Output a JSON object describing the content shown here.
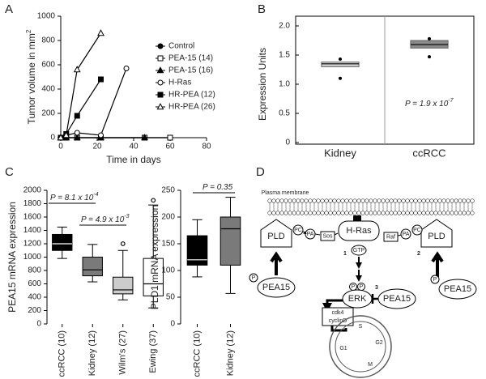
{
  "panel_labels": [
    "A",
    "B",
    "C",
    "D"
  ],
  "chart_data": [
    {
      "type": "line",
      "xlabel": "Time in days",
      "ylabel": "Tumor volume in mm",
      "ylabel_sup": "2",
      "xlim": [
        0,
        80
      ],
      "xticks": [
        0,
        20,
        40,
        60,
        80
      ],
      "ylim": [
        0,
        1000
      ],
      "yticks": [
        0,
        200,
        400,
        600,
        800,
        1000
      ],
      "series": [
        {
          "name": "Control",
          "color": "#000000",
          "marker": "circle",
          "filled": true,
          "x": [
            0,
            3,
            9,
            22,
            46,
            60
          ],
          "values": [
            0,
            0,
            0,
            0,
            0,
            0
          ]
        },
        {
          "name": "PEA-15 (14)",
          "color": "#000000",
          "marker": "square",
          "filled": false,
          "x": [
            0,
            3,
            9,
            22,
            46,
            60
          ],
          "values": [
            0,
            0,
            0,
            0,
            0,
            0
          ]
        },
        {
          "name": "PEA-15 (16)",
          "color": "#000000",
          "marker": "triangle",
          "filled": true,
          "x": [
            0,
            3,
            9,
            22,
            46
          ],
          "values": [
            0,
            0,
            0,
            0,
            0
          ]
        },
        {
          "name": "H-Ras",
          "color": "#000000",
          "marker": "circle",
          "filled": false,
          "x": [
            0,
            3,
            9,
            22,
            36
          ],
          "values": [
            0,
            20,
            40,
            20,
            570
          ]
        },
        {
          "name": "HR-PEA (12)",
          "color": "#000000",
          "marker": "square",
          "filled": true,
          "x": [
            0,
            3,
            9,
            22
          ],
          "values": [
            0,
            30,
            180,
            480
          ]
        },
        {
          "name": "HR-PEA (26)",
          "color": "#000000",
          "marker": "triangle",
          "filled": false,
          "x": [
            0,
            3,
            9,
            22
          ],
          "values": [
            0,
            20,
            560,
            860
          ]
        }
      ]
    },
    {
      "type": "box",
      "ylabel": "Expression Units",
      "categories": [
        "Kidney",
        "ccRCC"
      ],
      "ylim": [
        0,
        2
      ],
      "yticks": [
        0,
        0.5,
        {
          "value": 1,
          "label": "1.0"
        },
        1.5,
        {
          "value": 2,
          "label": "2.0"
        }
      ],
      "boxes": [
        {
          "q1": 1.3,
          "median": 1.35,
          "q3": 1.38,
          "points": [
            1.43,
            1.1
          ],
          "color": "#cfcfcf"
        },
        {
          "q1": 1.62,
          "median": 1.68,
          "q3": 1.75,
          "points": [
            1.78,
            1.47
          ],
          "color": "#8a8a8a"
        }
      ],
      "annotations": [
        {
          "text": "P = 1.9 x 10",
          "exponent": "-7"
        }
      ]
    },
    {
      "type": "box",
      "ylabel": "PEA15 mRNA expression",
      "categories": [
        "ccRCC (10)",
        "Kidney (12)",
        "Wilm's (27)",
        "Ewing (37)"
      ],
      "ylim": [
        0,
        2000
      ],
      "yticks": [
        0,
        200,
        400,
        600,
        800,
        1000,
        1200,
        1400,
        1600,
        1800,
        2000
      ],
      "boxes": [
        {
          "min": 980,
          "q1": 1100,
          "median": 1200,
          "q3": 1340,
          "max": 1450,
          "color": "#000000"
        },
        {
          "min": 630,
          "q1": 720,
          "median": 810,
          "q3": 1000,
          "max": 1190,
          "color": "#7a7a7a"
        },
        {
          "min": 360,
          "q1": 450,
          "median": 510,
          "q3": 700,
          "max": 1100,
          "outliers": [
            1200
          ],
          "color": "#cccccc"
        },
        {
          "min": 240,
          "q1": 420,
          "median": 600,
          "q3": 980,
          "max": 1780,
          "outliers": [
            1850
          ],
          "color": "#ffffff"
        }
      ],
      "annotations": [
        {
          "text": "P = 8.1 x 10",
          "exponent": "-4"
        },
        {
          "text": "P = 4.9 x 10",
          "exponent": "-3"
        }
      ]
    },
    {
      "type": "box",
      "ylabel": "PLD1 mRNA expression",
      "categories": [
        "ccRCC (10)",
        "Kidney (12)"
      ],
      "ylim": [
        0,
        250
      ],
      "yticks": [
        0,
        50,
        100,
        150,
        200,
        250
      ],
      "boxes": [
        {
          "min": 88,
          "q1": 110,
          "median": 120,
          "q3": 165,
          "max": 195,
          "color": "#000000"
        },
        {
          "min": 57,
          "q1": 110,
          "median": 178,
          "q3": 200,
          "max": 237,
          "color": "#7a7a7a"
        }
      ],
      "annotations": [
        {
          "text": "P = 0.35"
        }
      ]
    }
  ],
  "diagram": {
    "membrane": "Plasma membrane",
    "pld_left": "PLD",
    "pld_right": "PLD",
    "pc_left": "PC",
    "pa_left": "PA",
    "sos": "Sos",
    "hras": "H-Ras",
    "raf": "Raf",
    "pa_right": "PA",
    "pc_right": "PC",
    "gtp": "GTP",
    "step1": "1",
    "step2": "2",
    "step3": "3",
    "p_left": "P",
    "pea_left": "PEA15",
    "p_right": "P",
    "pea_right": "PEA15",
    "p_erk1": "P",
    "p_erk2": "P",
    "erk": "ERK",
    "pea_mid": "PEA15",
    "cdk4": "cdk4",
    "cyclind": "cyclinD",
    "s": "S",
    "g1": "G1",
    "g2": "G2",
    "m": "M"
  }
}
